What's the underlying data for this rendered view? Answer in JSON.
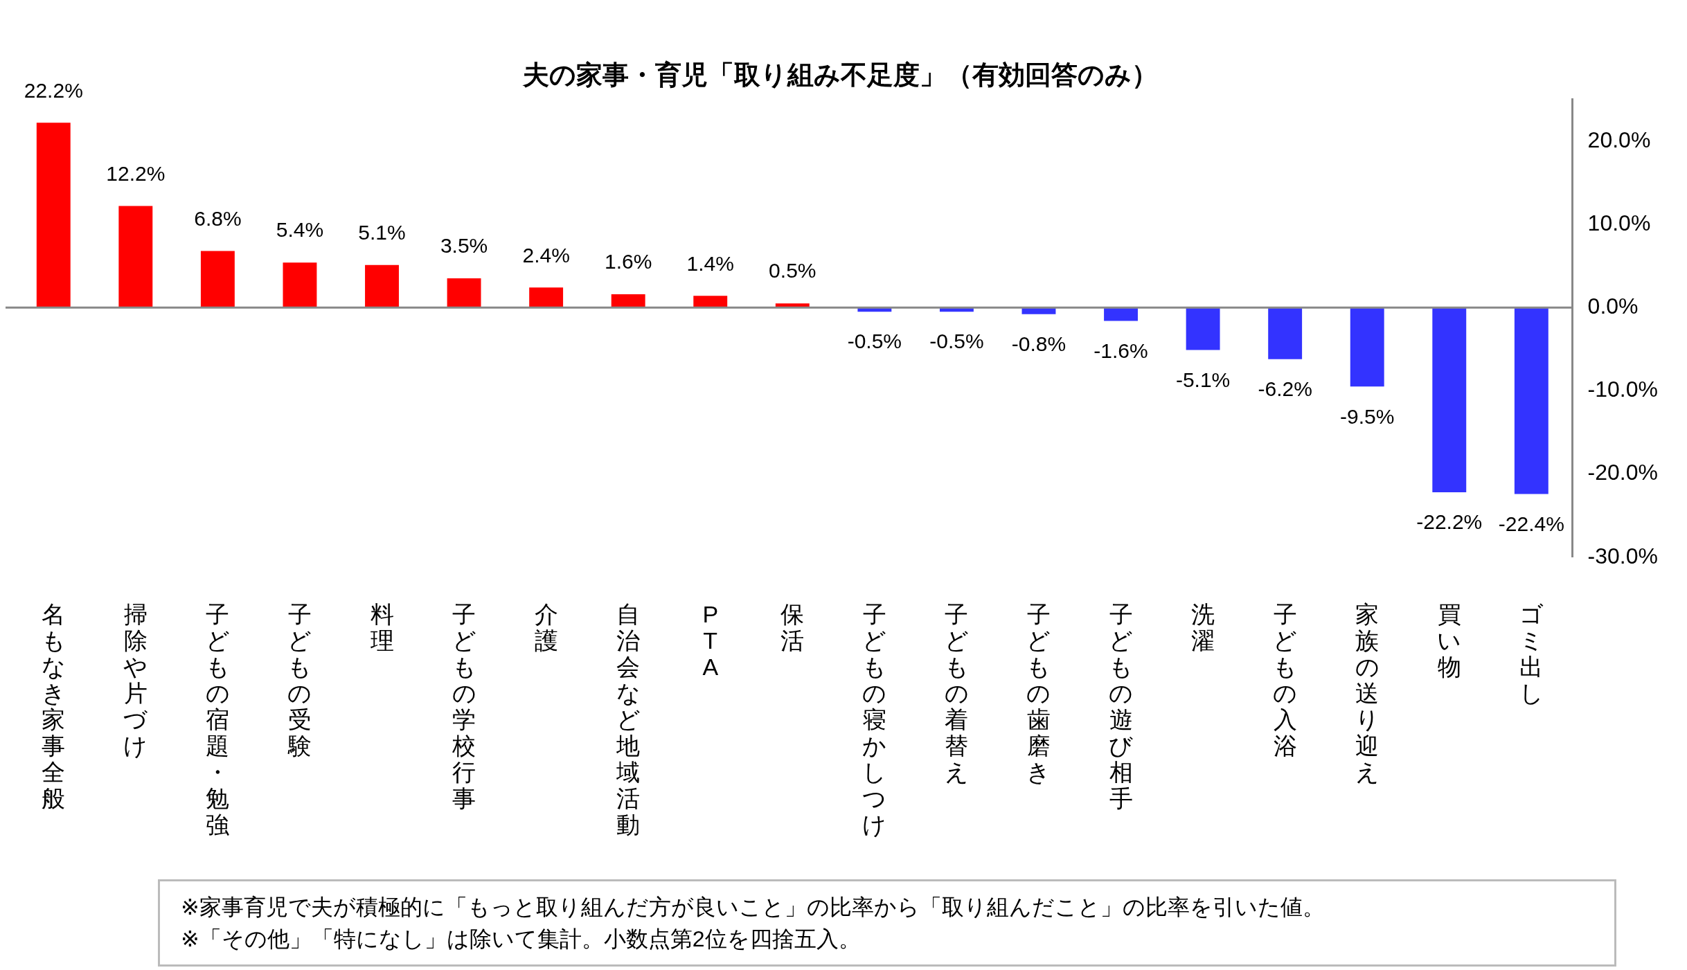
{
  "chart_data": {
    "type": "bar",
    "title": "夫の家事・育児「取り組み不足度」（有効回答のみ）",
    "categories": [
      "名もなき家事全般",
      "掃除や片づけ",
      "子どもの宿題・勉強",
      "子どもの受験",
      "料理",
      "子どもの学校行事",
      "介護",
      "自治会など地域活動",
      "PTA",
      "保活",
      "子どもの寝かしつけ",
      "子どもの着替え",
      "子どもの歯磨き",
      "子どもの遊び相手",
      "洗濯",
      "子どもの入浴",
      "家族の送り迎え",
      "買い物",
      "ゴミ出し"
    ],
    "values": [
      22.2,
      12.2,
      6.8,
      5.4,
      5.1,
      3.5,
      2.4,
      1.6,
      1.4,
      0.5,
      -0.5,
      -0.5,
      -0.8,
      -1.6,
      -5.1,
      -6.2,
      -9.5,
      -22.2,
      -22.4
    ],
    "colors": [
      "#ff0000",
      "#ff0000",
      "#ff0000",
      "#ff0000",
      "#ff0000",
      "#ff0000",
      "#ff0000",
      "#ff0000",
      "#ff0000",
      "#ff0000",
      "#3333ff",
      "#3333ff",
      "#3333ff",
      "#3333ff",
      "#3333ff",
      "#3333ff",
      "#3333ff",
      "#3333ff",
      "#3333ff"
    ],
    "value_labels": [
      "22.2%",
      "12.2%",
      "6.8%",
      "5.4%",
      "5.1%",
      "3.5%",
      "2.4%",
      "1.6%",
      "1.4%",
      "0.5%",
      "-0.5%",
      "-0.5%",
      "-0.8%",
      "-1.6%",
      "-5.1%",
      "-6.2%",
      "-9.5%",
      "-22.2%",
      "-22.4%"
    ],
    "ylim": [
      -30,
      25
    ],
    "yticks": [
      {
        "value": -30,
        "label": "-30.0%"
      },
      {
        "value": -20,
        "label": "-20.0%"
      },
      {
        "value": -10,
        "label": "-10.0%"
      },
      {
        "value": 0,
        "label": "0.0%"
      },
      {
        "value": 10,
        "label": "10.0%"
      },
      {
        "value": 20,
        "label": "20.0%"
      }
    ],
    "grid": false,
    "ref_lines": [
      {
        "axis": "y",
        "value": 0,
        "color": "#888888"
      }
    ],
    "annotations": [
      "※家事育児で夫が積極的に「もっと取り組んだ方が良いこと」の比率から「取り組んだこと」の比率を引いた値。",
      "※「その他」「特になし」は除いて集計。小数点第2位を四捨五入。"
    ]
  }
}
